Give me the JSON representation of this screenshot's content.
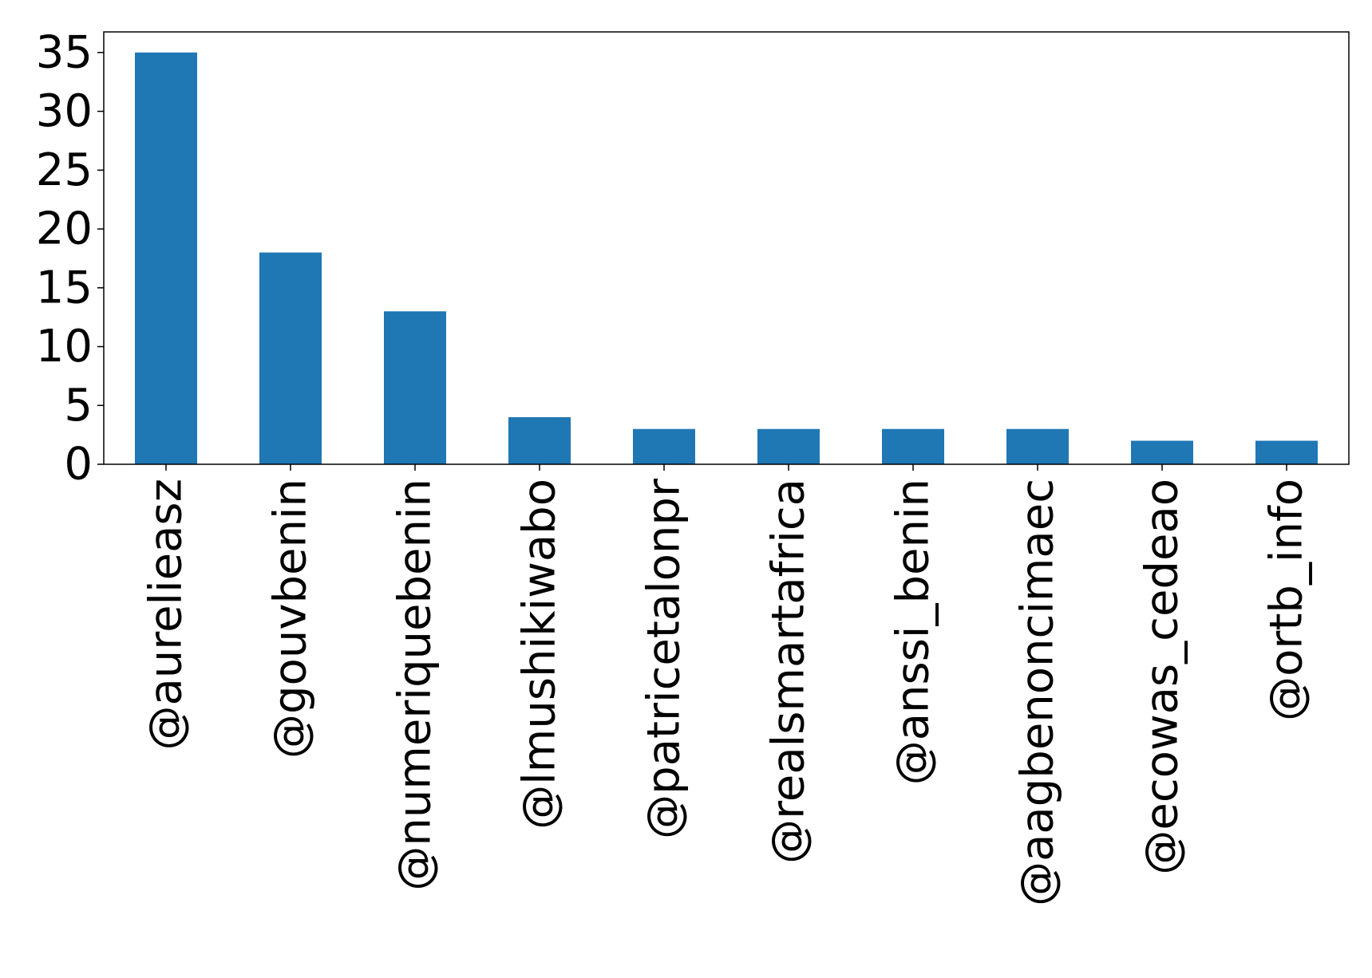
{
  "chart_data": {
    "type": "bar",
    "title": "",
    "xlabel": "",
    "ylabel": "",
    "categories": [
      "@aurelieasz",
      "@gouvbenin",
      "@numeriquebenin",
      "@lmushikiwabo",
      "@patricetalonpr",
      "@realsmartafrica",
      "@anssi_benin",
      "@aagbenoncimaec",
      "@ecowas_cedeao",
      "@ortb_info"
    ],
    "values": [
      35,
      18,
      13,
      4,
      3,
      3,
      3,
      3,
      2,
      2
    ],
    "ylim": [
      0,
      36.75
    ],
    "yticks": [
      "0",
      "5",
      "10",
      "15",
      "20",
      "25",
      "30",
      "35"
    ],
    "bar_color": "#1f77b4",
    "grid": false,
    "legend": "none"
  }
}
